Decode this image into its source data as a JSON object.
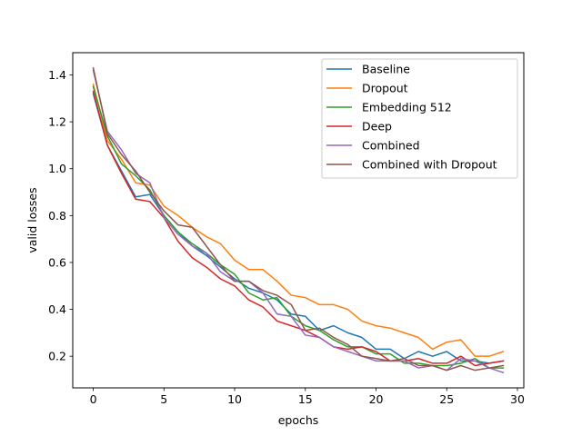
{
  "chart_data": {
    "type": "line",
    "xlabel": "epochs",
    "ylabel": "valid losses",
    "xlim": [
      -1.45,
      30.45
    ],
    "ylim": [
      0.065,
      1.495
    ],
    "xticks": [
      0,
      5,
      10,
      15,
      20,
      25,
      30
    ],
    "yticks": [
      0.2,
      0.4,
      0.6,
      0.8,
      1.0,
      1.2,
      1.4
    ],
    "ytick_labels": [
      "0.2",
      "0.4",
      "0.6",
      "0.8",
      "1.0",
      "1.2",
      "1.4"
    ],
    "grid": false,
    "legend_position": "top-right",
    "x": [
      0,
      1,
      2,
      3,
      4,
      5,
      6,
      7,
      8,
      9,
      10,
      11,
      12,
      13,
      14,
      15,
      16,
      17,
      18,
      19,
      20,
      21,
      22,
      23,
      24,
      25,
      26,
      27,
      28,
      29
    ],
    "series": [
      {
        "name": "Baseline",
        "color": "#1f77b4",
        "values": [
          1.32,
          1.1,
          0.99,
          0.88,
          0.89,
          0.8,
          0.73,
          0.67,
          0.63,
          0.58,
          0.53,
          0.49,
          0.47,
          0.44,
          0.38,
          0.37,
          0.31,
          0.33,
          0.3,
          0.28,
          0.23,
          0.23,
          0.19,
          0.22,
          0.2,
          0.22,
          0.18,
          0.18,
          0.17,
          0.18
        ]
      },
      {
        "name": "Dropout",
        "color": "#ff7f0e",
        "values": [
          1.36,
          1.12,
          1.04,
          0.94,
          0.93,
          0.84,
          0.8,
          0.75,
          0.71,
          0.68,
          0.61,
          0.57,
          0.57,
          0.52,
          0.46,
          0.45,
          0.42,
          0.42,
          0.4,
          0.35,
          0.33,
          0.32,
          0.3,
          0.28,
          0.23,
          0.26,
          0.27,
          0.2,
          0.2,
          0.22
        ]
      },
      {
        "name": "Embedding 512",
        "color": "#2ca02c",
        "values": [
          1.35,
          1.14,
          1.02,
          0.97,
          0.91,
          0.8,
          0.73,
          0.68,
          0.64,
          0.59,
          0.55,
          0.47,
          0.44,
          0.45,
          0.37,
          0.33,
          0.31,
          0.27,
          0.24,
          0.24,
          0.21,
          0.21,
          0.17,
          0.17,
          0.16,
          0.16,
          0.17,
          0.19,
          0.15,
          0.15
        ]
      },
      {
        "name": "Deep",
        "color": "#d62728",
        "values": [
          1.33,
          1.1,
          0.98,
          0.87,
          0.86,
          0.79,
          0.69,
          0.62,
          0.58,
          0.53,
          0.5,
          0.44,
          0.41,
          0.35,
          0.33,
          0.31,
          0.28,
          0.24,
          0.23,
          0.24,
          0.22,
          0.18,
          0.18,
          0.19,
          0.17,
          0.17,
          0.2,
          0.16,
          0.17,
          0.18
        ]
      },
      {
        "name": "Combined",
        "color": "#9467bd",
        "values": [
          1.42,
          1.16,
          1.08,
          0.98,
          0.94,
          0.79,
          0.72,
          0.67,
          0.64,
          0.56,
          0.52,
          0.52,
          0.47,
          0.38,
          0.37,
          0.29,
          0.28,
          0.24,
          0.22,
          0.2,
          0.18,
          0.18,
          0.18,
          0.15,
          0.16,
          0.14,
          0.19,
          0.18,
          0.15,
          0.13
        ]
      },
      {
        "name": "Combined with Dropout",
        "color": "#8c564b",
        "values": [
          1.43,
          1.15,
          1.06,
          0.99,
          0.9,
          0.82,
          0.76,
          0.75,
          0.67,
          0.59,
          0.52,
          0.52,
          0.48,
          0.46,
          0.42,
          0.31,
          0.32,
          0.28,
          0.25,
          0.2,
          0.19,
          0.18,
          0.19,
          0.16,
          0.16,
          0.14,
          0.16,
          0.14,
          0.15,
          0.16
        ]
      }
    ]
  }
}
